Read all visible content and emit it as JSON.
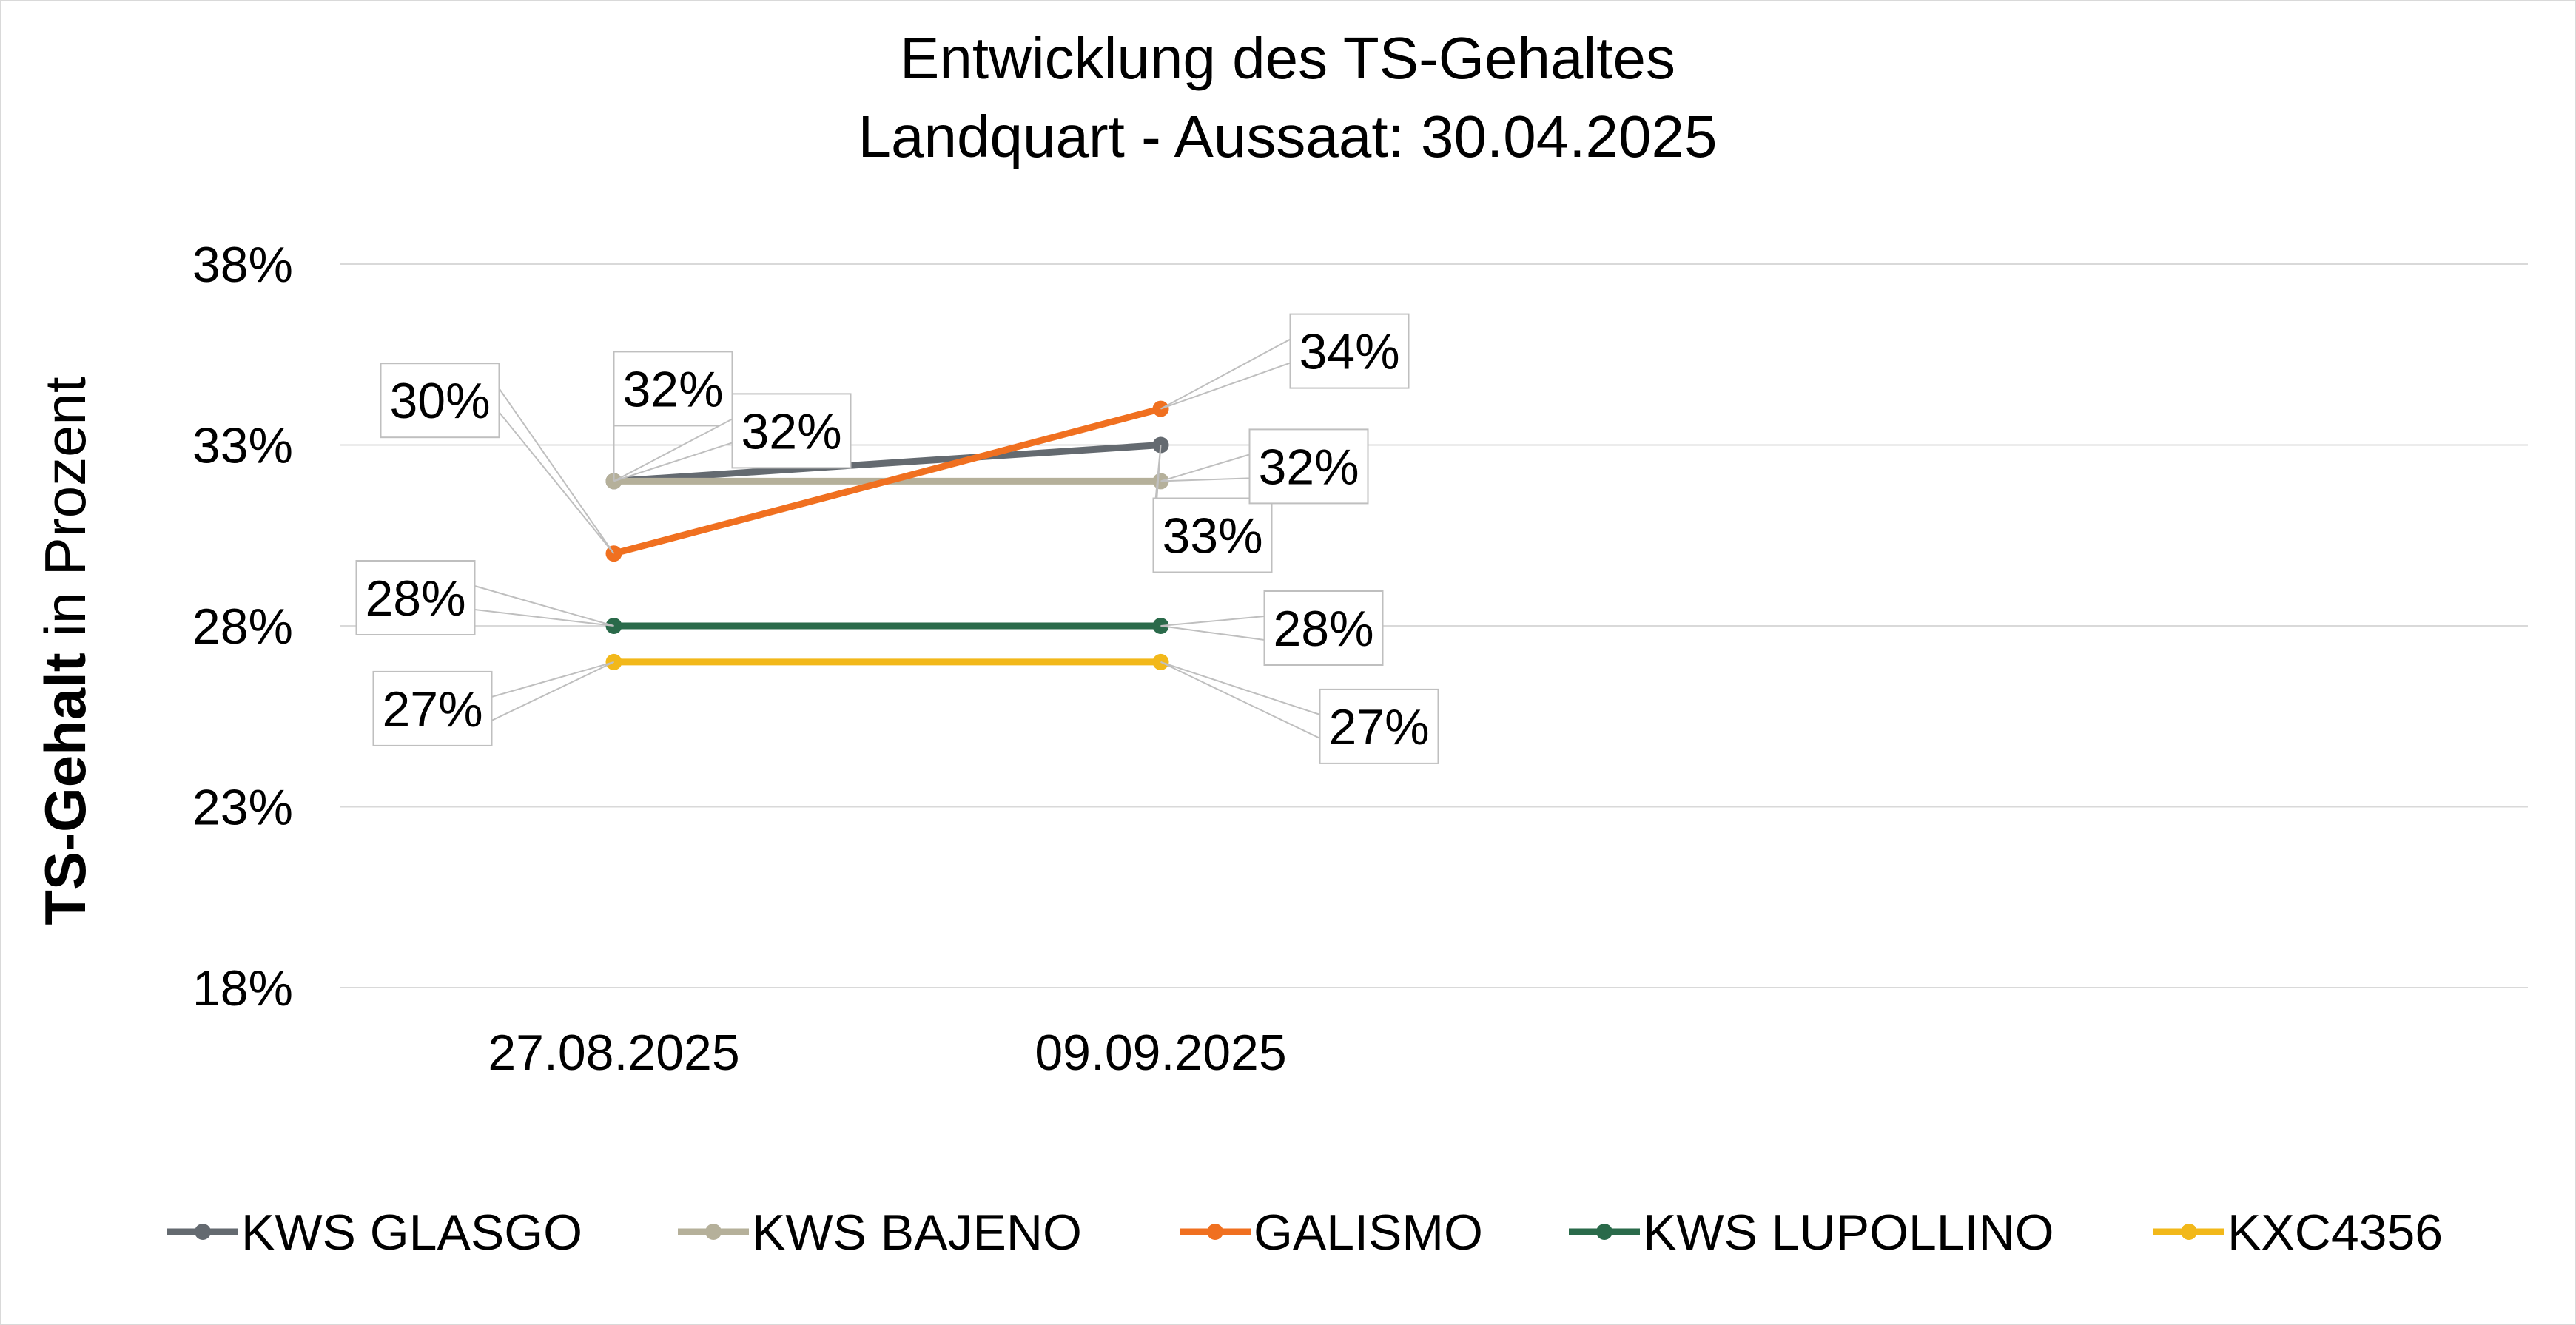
{
  "chart_data": {
    "type": "line",
    "title": "Entwicklung des TS-Gehaltes",
    "subtitle": "Landquart - Aussaat: 30.04.2025",
    "ylabel_bold": "TS-Gehalt",
    "ylabel_rest": " in Prozent",
    "xlabel": "",
    "categories": [
      "27.08.2025",
      "09.09.2025"
    ],
    "category_slots": 4,
    "ylim": [
      18,
      38
    ],
    "yticks": [
      18,
      23,
      28,
      33,
      38
    ],
    "ytick_labels": [
      "18%",
      "23%",
      "28%",
      "33%",
      "38%"
    ],
    "grid": true,
    "legend_position": "bottom",
    "series": [
      {
        "name": "KWS GLASGO",
        "color": "#646a70",
        "values": [
          32,
          33
        ],
        "labels": [
          "32%",
          "33%"
        ]
      },
      {
        "name": "KWS BAJENO",
        "color": "#b5b09a",
        "values": [
          32,
          32
        ],
        "labels": [
          "32%",
          "32%"
        ]
      },
      {
        "name": "GALISMO",
        "color": "#f07020",
        "values": [
          30,
          34
        ],
        "labels": [
          "30%",
          "34%"
        ]
      },
      {
        "name": "KWS LUPOLLINO",
        "color": "#2a6a4a",
        "values": [
          28,
          28
        ],
        "labels": [
          "28%",
          "28%"
        ]
      },
      {
        "name": "KXC4356",
        "color": "#f2b81a",
        "values": [
          27,
          27
        ],
        "labels": [
          "27%",
          "27%"
        ]
      }
    ]
  }
}
